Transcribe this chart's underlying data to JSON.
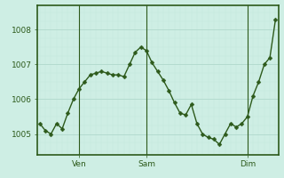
{
  "x_values": [
    0,
    1,
    2,
    3,
    4,
    5,
    6,
    7,
    8,
    9,
    10,
    11,
    12,
    13,
    14,
    15,
    16,
    17,
    18,
    19,
    20,
    21,
    22,
    23,
    24,
    25,
    26,
    27,
    28,
    29,
    30,
    31,
    32,
    33,
    34,
    35,
    36,
    37,
    38,
    39,
    40,
    41,
    42
  ],
  "y_values": [
    1005.3,
    1005.1,
    1005.0,
    1005.3,
    1005.15,
    1005.6,
    1006.0,
    1006.3,
    1006.5,
    1006.7,
    1006.75,
    1006.8,
    1006.75,
    1006.7,
    1006.7,
    1006.65,
    1007.0,
    1007.35,
    1007.5,
    1007.4,
    1007.05,
    1006.8,
    1006.55,
    1006.25,
    1005.9,
    1005.6,
    1005.55,
    1005.85,
    1005.3,
    1005.0,
    1004.9,
    1004.85,
    1004.7,
    1005.0,
    1005.3,
    1005.2,
    1005.3,
    1005.5,
    1006.1,
    1006.5,
    1007.0,
    1007.2,
    1008.3
  ],
  "xtick_positions": [
    7,
    19,
    37
  ],
  "xtick_labels": [
    "Ven",
    "Sam",
    "Dim"
  ],
  "ytick_values": [
    1005,
    1006,
    1007,
    1008
  ],
  "ylim": [
    1004.4,
    1008.7
  ],
  "xlim": [
    -0.5,
    42.5
  ],
  "line_color": "#2d5a1b",
  "marker_color": "#2d5a1b",
  "bg_color": "#ceeee4",
  "grid_color_major": "#b0d8cc",
  "grid_color_minor": "#c4e8dc",
  "axis_color": "#2d5a1b",
  "label_color": "#2d5a1b",
  "tick_fontsize": 6.5,
  "line_width": 1.0,
  "marker_size": 2.5
}
